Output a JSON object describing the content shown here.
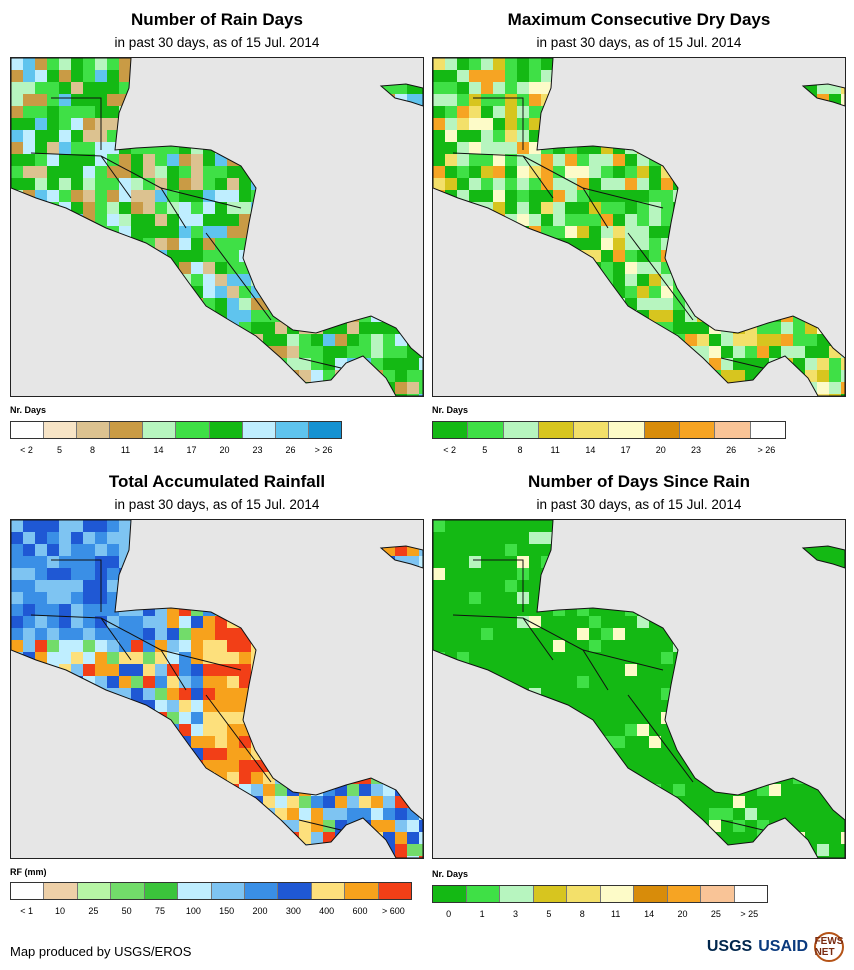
{
  "panels": [
    {
      "title": "Number of Rain Days",
      "subtitle": "in past 30 days, as of 15 Jul. 2014",
      "legend_title": "Nr. Days",
      "legend_colors": [
        "#ffffff",
        "#f7e4c6",
        "#dcc290",
        "#c99b45",
        "#b7f5bf",
        "#3fe046",
        "#14b914",
        "#bfeeff",
        "#5fc4ee",
        "#1592d2"
      ],
      "legend_ticks": [
        "< 2",
        "5",
        "8",
        "11",
        "14",
        "17",
        "20",
        "23",
        "26",
        "> 26"
      ],
      "palette": [
        "#c99b45",
        "#dcc290",
        "#b7f5bf",
        "#3fe046",
        "#14b914",
        "#bfeeff",
        "#5fc4ee"
      ]
    },
    {
      "title": "Maximum Consecutive Dry Days",
      "subtitle": "in past 30 days, as of 15 Jul. 2014",
      "legend_title": "Nr. Days",
      "legend_colors": [
        "#14b914",
        "#3fe046",
        "#b7f5bf",
        "#d7c51f",
        "#f3e06a",
        "#fdfbc8",
        "#d88c0a",
        "#f6a423",
        "#f9c497",
        "#ffffff"
      ],
      "legend_ticks": [
        "< 2",
        "5",
        "8",
        "11",
        "14",
        "17",
        "20",
        "23",
        "26",
        "> 26"
      ],
      "palette": [
        "#14b914",
        "#3fe046",
        "#b7f5bf",
        "#d7c51f",
        "#f3e06a",
        "#fdfbc8",
        "#f6a423"
      ]
    },
    {
      "title": "Total Accumulated Rainfall",
      "subtitle": "in past 30 days, as of 15 Jul. 2014",
      "legend_title": "RF (mm)",
      "legend_colors": [
        "#ffffff",
        "#eed0a8",
        "#b7f5a5",
        "#72dc6a",
        "#3bc43b",
        "#bfeeff",
        "#7ec4f2",
        "#3a8fe6",
        "#1f58d4",
        "#fde07c",
        "#f7a21c",
        "#f23f17"
      ],
      "legend_ticks": [
        "< 1",
        "10",
        "25",
        "50",
        "75",
        "100",
        "150",
        "200",
        "300",
        "400",
        "600",
        "> 600"
      ],
      "palette": [
        "#1f58d4",
        "#3a8fe6",
        "#7ec4f2",
        "#bfeeff",
        "#72dc6a",
        "#fde07c",
        "#f7a21c",
        "#f23f17"
      ]
    },
    {
      "title": "Number of Days Since Rain",
      "subtitle": "in past 30 days, as of 15 Jul. 2014",
      "legend_title": "Nr. Days",
      "legend_colors": [
        "#14b914",
        "#3fe046",
        "#b7f5bf",
        "#d7c51f",
        "#f3e06a",
        "#fdfbc8",
        "#d88c0a",
        "#f6a423",
        "#f9c497",
        "#ffffff"
      ],
      "legend_ticks": [
        "0",
        "1",
        "3",
        "5",
        "8",
        "11",
        "14",
        "20",
        "25",
        "> 25"
      ],
      "palette": [
        "#14b914",
        "#14b914",
        "#3fe046",
        "#3fe046",
        "#b7f5bf",
        "#fdfbc8"
      ]
    }
  ],
  "footer": {
    "credit": "Map produced by USGS/EROS",
    "logo_usgs": "USGS",
    "logo_usaid": "USAID",
    "logo_fews": "FEWS NET"
  }
}
